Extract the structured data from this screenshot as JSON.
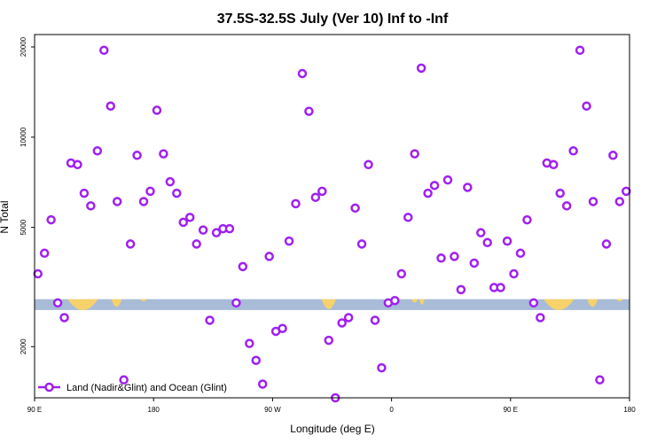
{
  "chart_data": {
    "type": "scatter",
    "title": "37.5S-32.5S July (Ver 10)   Inf to -Inf",
    "xlabel": "Longitude (deg E)",
    "ylabel": "N Total",
    "yscale": "log",
    "xlim": [
      90,
      540
    ],
    "ylim": [
      1350,
      22000
    ],
    "grid": false,
    "legend_position": "bottom-left",
    "x_ticks": [
      {
        "value": 90,
        "label": "90 E"
      },
      {
        "value": 180,
        "label": "180"
      },
      {
        "value": 270,
        "label": "90 W"
      },
      {
        "value": 360,
        "label": "0"
      },
      {
        "value": 450,
        "label": "90 E"
      },
      {
        "value": 540,
        "label": "180"
      }
    ],
    "y_ticks": [
      {
        "value": 2000,
        "label": "2000"
      },
      {
        "value": 5000,
        "label": "5000"
      },
      {
        "value": 10000,
        "label": "10000"
      },
      {
        "value": 20000,
        "label": "20000"
      }
    ],
    "land_band": {
      "y_low": 2650,
      "y_high": 2880
    },
    "series": [
      {
        "name": "Land (Nadir&Glint) and Ocean (Glint)",
        "color": "#a020f0",
        "points": [
          [
            92.5,
            3500
          ],
          [
            97.5,
            4100
          ],
          [
            102.5,
            5300
          ],
          [
            107.5,
            2800
          ],
          [
            112.5,
            2500
          ],
          [
            117.5,
            8200
          ],
          [
            122.5,
            8100
          ],
          [
            127.5,
            6500
          ],
          [
            132.5,
            5900
          ],
          [
            137.5,
            9000
          ],
          [
            142.5,
            19500
          ],
          [
            147.5,
            12700
          ],
          [
            152.5,
            6100
          ],
          [
            157.5,
            1550
          ],
          [
            162.5,
            4400
          ],
          [
            167.5,
            8700
          ],
          [
            172.5,
            6100
          ],
          [
            177.5,
            6600
          ],
          [
            182.5,
            12300
          ],
          [
            187.5,
            8800
          ],
          [
            192.5,
            7100
          ],
          [
            197.5,
            6500
          ],
          [
            202.5,
            5200
          ],
          [
            207.5,
            5400
          ],
          [
            212.5,
            4400
          ],
          [
            217.5,
            4900
          ],
          [
            222.5,
            2450
          ],
          [
            227.5,
            4800
          ],
          [
            232.5,
            4950
          ],
          [
            237.5,
            4950
          ],
          [
            242.5,
            2800
          ],
          [
            247.5,
            3700
          ],
          [
            252.5,
            2050
          ],
          [
            257.5,
            1800
          ],
          [
            262.5,
            1500
          ],
          [
            267.5,
            4000
          ],
          [
            272.5,
            2250
          ],
          [
            277.5,
            2300
          ],
          [
            282.5,
            4500
          ],
          [
            287.5,
            6000
          ],
          [
            292.5,
            16300
          ],
          [
            297.5,
            12200
          ],
          [
            302.5,
            6300
          ],
          [
            307.5,
            6600
          ],
          [
            312.5,
            2100
          ],
          [
            317.5,
            1350
          ],
          [
            322.5,
            2400
          ],
          [
            327.5,
            2500
          ],
          [
            332.5,
            5800
          ],
          [
            337.5,
            4400
          ],
          [
            342.5,
            8100
          ],
          [
            347.5,
            2450
          ],
          [
            352.5,
            1700
          ],
          [
            357.5,
            2800
          ],
          [
            362.5,
            2850
          ],
          [
            367.5,
            3500
          ],
          [
            372.5,
            5400
          ],
          [
            377.5,
            8800
          ],
          [
            382.5,
            17000
          ],
          [
            387.5,
            6500
          ],
          [
            392.5,
            6900
          ],
          [
            397.5,
            3950
          ],
          [
            402.5,
            7200
          ],
          [
            407.5,
            4000
          ],
          [
            412.5,
            3100
          ],
          [
            417.5,
            6800
          ],
          [
            422.5,
            3800
          ],
          [
            427.5,
            4800
          ],
          [
            432.5,
            4450
          ],
          [
            437.5,
            3150
          ],
          [
            442.5,
            3150
          ],
          [
            447.5,
            4500
          ],
          [
            452.5,
            3500
          ],
          [
            457.5,
            4100
          ],
          [
            462.5,
            5300
          ],
          [
            467.5,
            2800
          ],
          [
            472.5,
            2500
          ],
          [
            477.5,
            8200
          ],
          [
            482.5,
            8100
          ],
          [
            487.5,
            6500
          ],
          [
            492.5,
            5900
          ],
          [
            497.5,
            9000
          ],
          [
            502.5,
            19500
          ],
          [
            507.5,
            12700
          ],
          [
            512.5,
            6100
          ],
          [
            517.5,
            1550
          ],
          [
            522.5,
            4400
          ],
          [
            527.5,
            8700
          ],
          [
            532.5,
            6100
          ],
          [
            537.5,
            6600
          ]
        ]
      }
    ]
  }
}
